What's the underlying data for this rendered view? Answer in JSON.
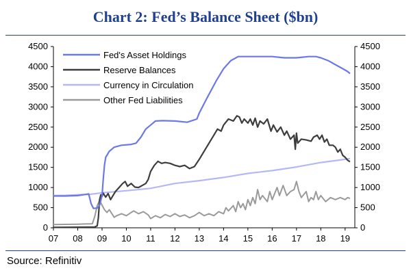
{
  "title": "Chart 2: Fed’s Balance Sheet ($bn)",
  "source": "Source: Refinitiv",
  "chart_data": {
    "type": "line",
    "title": "Chart 2: Fed’s Balance Sheet ($bn)",
    "ylim": [
      0,
      4500
    ],
    "y_ticks": [
      0,
      500,
      1000,
      1500,
      2000,
      2500,
      3000,
      3500,
      4000,
      4500
    ],
    "x_tick_labels": [
      "07",
      "08",
      "09",
      "10",
      "11",
      "12",
      "13",
      "14",
      "15",
      "16",
      "17",
      "18",
      "19"
    ],
    "xlim": [
      2007,
      2019.4
    ],
    "grid": false,
    "legend_position": "top-left",
    "series": [
      {
        "name": "Fed's Asset Holdings",
        "color": "#6b78e6",
        "points": [
          [
            2007,
            790
          ],
          [
            2007.5,
            790
          ],
          [
            2008,
            800
          ],
          [
            2008.45,
            840
          ],
          [
            2008.55,
            600
          ],
          [
            2008.65,
            480
          ],
          [
            2008.8,
            490
          ],
          [
            2008.9,
            560
          ],
          [
            2009,
            800
          ],
          [
            2009.05,
            1200
          ],
          [
            2009.1,
            1550
          ],
          [
            2009.15,
            1750
          ],
          [
            2009.2,
            1800
          ],
          [
            2009.3,
            1900
          ],
          [
            2009.5,
            2000
          ],
          [
            2009.8,
            2050
          ],
          [
            2010.2,
            2070
          ],
          [
            2010.4,
            2100
          ],
          [
            2010.6,
            2250
          ],
          [
            2010.8,
            2450
          ],
          [
            2011,
            2550
          ],
          [
            2011.2,
            2650
          ],
          [
            2011.5,
            2660
          ],
          [
            2012,
            2650
          ],
          [
            2012.5,
            2620
          ],
          [
            2012.9,
            2700
          ],
          [
            2013,
            2850
          ],
          [
            2013.3,
            3200
          ],
          [
            2013.7,
            3650
          ],
          [
            2014,
            3950
          ],
          [
            2014.3,
            4150
          ],
          [
            2014.6,
            4250
          ],
          [
            2015,
            4250
          ],
          [
            2015.5,
            4250
          ],
          [
            2016,
            4250
          ],
          [
            2016.5,
            4220
          ],
          [
            2017,
            4220
          ],
          [
            2017.5,
            4250
          ],
          [
            2017.8,
            4250
          ],
          [
            2018,
            4220
          ],
          [
            2018.3,
            4150
          ],
          [
            2018.6,
            4050
          ],
          [
            2018.9,
            3950
          ],
          [
            2019.1,
            3880
          ],
          [
            2019.2,
            3830
          ]
        ]
      },
      {
        "name": "Reserve Balances",
        "color": "#3d3d3d",
        "points": [
          [
            2007,
            10
          ],
          [
            2008,
            15
          ],
          [
            2008.7,
            20
          ],
          [
            2008.8,
            50
          ],
          [
            2008.85,
            250
          ],
          [
            2008.9,
            700
          ],
          [
            2008.95,
            820
          ],
          [
            2009,
            780
          ],
          [
            2009.05,
            860
          ],
          [
            2009.15,
            760
          ],
          [
            2009.25,
            850
          ],
          [
            2009.35,
            700
          ],
          [
            2009.45,
            800
          ],
          [
            2009.55,
            900
          ],
          [
            2009.7,
            1000
          ],
          [
            2009.85,
            1100
          ],
          [
            2009.95,
            1150
          ],
          [
            2010.05,
            1030
          ],
          [
            2010.2,
            1100
          ],
          [
            2010.35,
            1010
          ],
          [
            2010.5,
            1000
          ],
          [
            2010.65,
            1050
          ],
          [
            2010.8,
            1100
          ],
          [
            2010.9,
            1200
          ],
          [
            2011,
            1400
          ],
          [
            2011.15,
            1550
          ],
          [
            2011.3,
            1650
          ],
          [
            2011.45,
            1600
          ],
          [
            2011.6,
            1620
          ],
          [
            2011.8,
            1600
          ],
          [
            2012,
            1550
          ],
          [
            2012.2,
            1520
          ],
          [
            2012.4,
            1550
          ],
          [
            2012.6,
            1470
          ],
          [
            2012.8,
            1520
          ],
          [
            2013,
            1700
          ],
          [
            2013.2,
            1900
          ],
          [
            2013.4,
            2100
          ],
          [
            2013.6,
            2300
          ],
          [
            2013.75,
            2450
          ],
          [
            2013.9,
            2400
          ],
          [
            2014,
            2550
          ],
          [
            2014.2,
            2700
          ],
          [
            2014.4,
            2650
          ],
          [
            2014.55,
            2780
          ],
          [
            2014.65,
            2750
          ],
          [
            2014.75,
            2600
          ],
          [
            2014.85,
            2700
          ],
          [
            2015,
            2600
          ],
          [
            2015.1,
            2700
          ],
          [
            2015.2,
            2550
          ],
          [
            2015.3,
            2720
          ],
          [
            2015.4,
            2500
          ],
          [
            2015.5,
            2650
          ],
          [
            2015.65,
            2580
          ],
          [
            2015.8,
            2700
          ],
          [
            2015.95,
            2400
          ],
          [
            2016.05,
            2550
          ],
          [
            2016.2,
            2380
          ],
          [
            2016.35,
            2500
          ],
          [
            2016.5,
            2300
          ],
          [
            2016.6,
            2400
          ],
          [
            2016.75,
            2200
          ],
          [
            2016.9,
            2300
          ],
          [
            2016.95,
            1950
          ],
          [
            2017,
            2350
          ],
          [
            2017.05,
            2100
          ],
          [
            2017.2,
            2200
          ],
          [
            2017.4,
            2180
          ],
          [
            2017.6,
            2150
          ],
          [
            2017.7,
            2250
          ],
          [
            2017.85,
            2300
          ],
          [
            2017.95,
            2200
          ],
          [
            2018.05,
            2300
          ],
          [
            2018.15,
            2130
          ],
          [
            2018.25,
            2200
          ],
          [
            2018.35,
            2050
          ],
          [
            2018.5,
            2050
          ],
          [
            2018.6,
            2000
          ],
          [
            2018.7,
            1880
          ],
          [
            2018.8,
            1950
          ],
          [
            2018.9,
            1800
          ],
          [
            2019,
            1750
          ],
          [
            2019.1,
            1680
          ],
          [
            2019.2,
            1640
          ]
        ]
      },
      {
        "name": "Currency in Circulation",
        "color": "#b4b8f4",
        "points": [
          [
            2007,
            800
          ],
          [
            2007.5,
            805
          ],
          [
            2008,
            820
          ],
          [
            2008.5,
            830
          ],
          [
            2009,
            870
          ],
          [
            2010,
            920
          ],
          [
            2011,
            980
          ],
          [
            2012,
            1100
          ],
          [
            2013,
            1170
          ],
          [
            2014,
            1250
          ],
          [
            2015,
            1350
          ],
          [
            2016,
            1420
          ],
          [
            2017,
            1510
          ],
          [
            2018,
            1620
          ],
          [
            2019,
            1700
          ],
          [
            2019.2,
            1720
          ]
        ]
      },
      {
        "name": "Other Fed Liabilities",
        "color": "#9a9a9a",
        "points": [
          [
            2007,
            80
          ],
          [
            2007.5,
            85
          ],
          [
            2008,
            90
          ],
          [
            2008.6,
            100
          ],
          [
            2008.7,
            280
          ],
          [
            2008.8,
            550
          ],
          [
            2008.9,
            680
          ],
          [
            2009,
            560
          ],
          [
            2009.1,
            450
          ],
          [
            2009.2,
            380
          ],
          [
            2009.3,
            450
          ],
          [
            2009.5,
            260
          ],
          [
            2009.6,
            300
          ],
          [
            2009.8,
            350
          ],
          [
            2010,
            300
          ],
          [
            2010.2,
            380
          ],
          [
            2010.3,
            420
          ],
          [
            2010.5,
            350
          ],
          [
            2010.7,
            400
          ],
          [
            2010.9,
            320
          ],
          [
            2011,
            230
          ],
          [
            2011.2,
            300
          ],
          [
            2011.4,
            250
          ],
          [
            2011.6,
            330
          ],
          [
            2011.8,
            280
          ],
          [
            2012,
            350
          ],
          [
            2012.2,
            280
          ],
          [
            2012.4,
            320
          ],
          [
            2012.6,
            250
          ],
          [
            2012.8,
            300
          ],
          [
            2013,
            380
          ],
          [
            2013.2,
            300
          ],
          [
            2013.4,
            350
          ],
          [
            2013.6,
            300
          ],
          [
            2013.8,
            400
          ],
          [
            2014,
            350
          ],
          [
            2014.1,
            500
          ],
          [
            2014.2,
            420
          ],
          [
            2014.4,
            550
          ],
          [
            2014.5,
            400
          ],
          [
            2014.6,
            650
          ],
          [
            2014.7,
            500
          ],
          [
            2014.8,
            600
          ],
          [
            2014.9,
            450
          ],
          [
            2015,
            700
          ],
          [
            2015.1,
            550
          ],
          [
            2015.2,
            750
          ],
          [
            2015.3,
            600
          ],
          [
            2015.4,
            950
          ],
          [
            2015.5,
            700
          ],
          [
            2015.6,
            800
          ],
          [
            2015.8,
            650
          ],
          [
            2015.9,
            900
          ],
          [
            2016,
            700
          ],
          [
            2016.2,
            1000
          ],
          [
            2016.3,
            800
          ],
          [
            2016.45,
            1050
          ],
          [
            2016.6,
            800
          ],
          [
            2016.75,
            900
          ],
          [
            2016.9,
            950
          ],
          [
            2017,
            1150
          ],
          [
            2017.1,
            900
          ],
          [
            2017.2,
            750
          ],
          [
            2017.4,
            900
          ],
          [
            2017.5,
            650
          ],
          [
            2017.6,
            750
          ],
          [
            2017.7,
            700
          ],
          [
            2017.8,
            900
          ],
          [
            2017.9,
            700
          ],
          [
            2018,
            800
          ],
          [
            2018.2,
            650
          ],
          [
            2018.4,
            750
          ],
          [
            2018.6,
            700
          ],
          [
            2018.8,
            750
          ],
          [
            2019,
            700
          ],
          [
            2019.1,
            750
          ],
          [
            2019.2,
            730
          ]
        ]
      }
    ]
  }
}
